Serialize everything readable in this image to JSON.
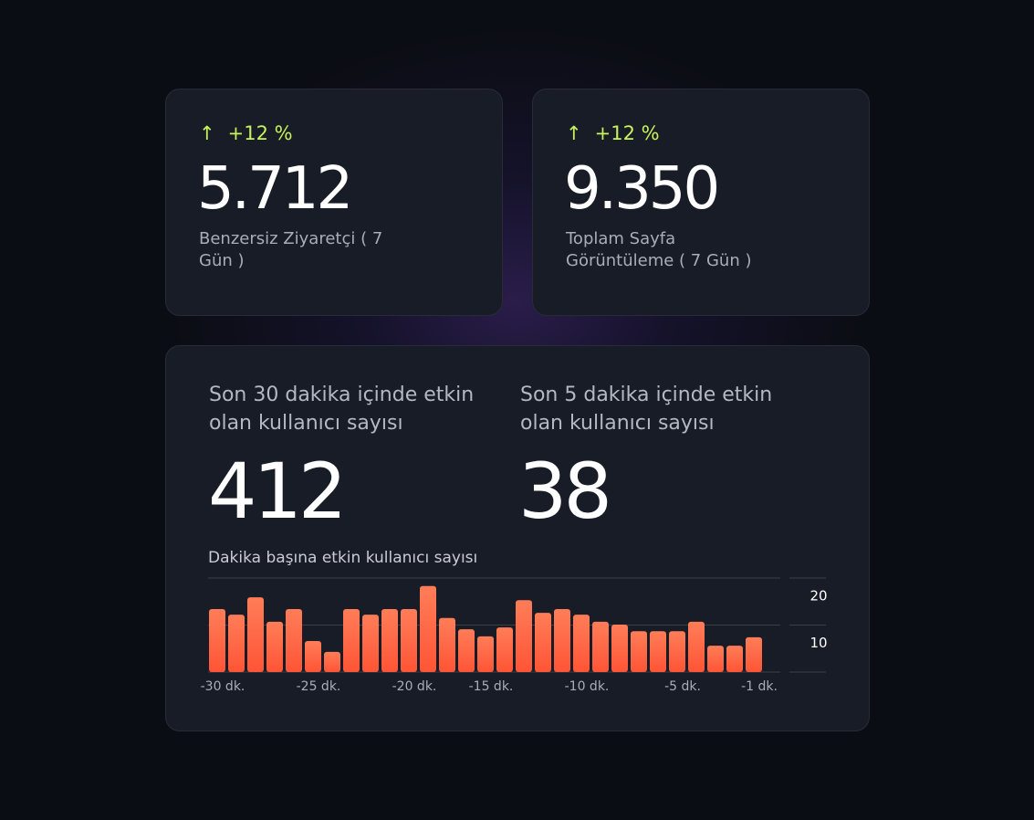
{
  "cards": [
    {
      "change": "+12 %",
      "value": "5.712",
      "label": "Benzersiz Ziyaretçi ( 7 Gün )"
    },
    {
      "change": "+12 %",
      "value": "9.350",
      "label": "Toplam Sayfa Görüntüleme ( 7 Gün )"
    }
  ],
  "live": {
    "stats": [
      {
        "label": "Son 30 dakika içinde etkin olan kullanıcı sayısı",
        "value": "412"
      },
      {
        "label": "Son 5 dakika içinde etkin olan kullanıcı sayısı",
        "value": "38"
      }
    ]
  },
  "chart_data": {
    "type": "bar",
    "title": "Dakika başına etkin kullanıcı sayısı",
    "categories": [
      "-30 dk.",
      null,
      null,
      null,
      null,
      "-25 dk.",
      null,
      null,
      null,
      null,
      "-20 dk.",
      null,
      null,
      null,
      "-15 dk.",
      null,
      null,
      null,
      null,
      "-10 dk.",
      null,
      null,
      null,
      null,
      "-5 dk.",
      null,
      null,
      null,
      "-1 dk."
    ],
    "values": [
      13.4,
      12.2,
      15.9,
      10.7,
      13.4,
      6.6,
      4.3,
      13.4,
      12.2,
      13.4,
      13.4,
      18.3,
      11.5,
      9.1,
      7.6,
      9.5,
      15.3,
      12.6,
      13.4,
      12.2,
      10.7,
      10.1,
      8.7,
      8.7,
      8.7,
      10.7,
      5.6,
      5.6,
      7.4
    ],
    "color": "#ff6a48",
    "ylim": [
      0,
      20
    ],
    "yticks": [
      10,
      20
    ],
    "grid": true
  }
}
